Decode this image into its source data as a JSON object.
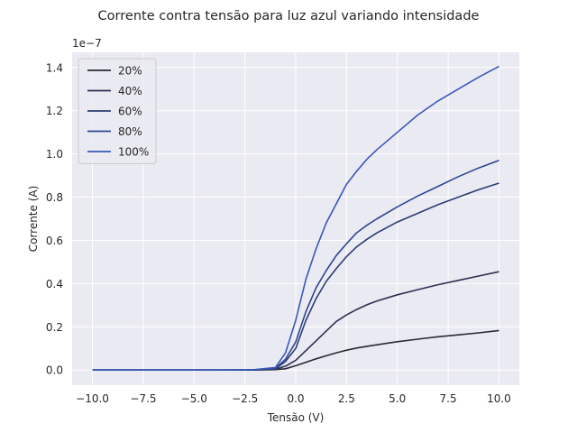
{
  "chart_data": {
    "type": "line",
    "title": "Corrente contra tensão para luz azul variando intensidade",
    "xlabel": "Tensão (V)",
    "ylabel": "Corrente (A)",
    "y_multiplier_label": "1e−7",
    "xlim": [
      -11,
      11
    ],
    "ylim": [
      -0.07,
      1.47
    ],
    "x_ticks": [
      -10.0,
      -7.5,
      -5.0,
      -2.5,
      0.0,
      2.5,
      5.0,
      7.5,
      10.0
    ],
    "x_tick_labels": [
      "−10.0",
      "−7.5",
      "−5.0",
      "−2.5",
      "0.0",
      "2.5",
      "5.0",
      "7.5",
      "10.0"
    ],
    "y_ticks": [
      0.0,
      0.2,
      0.4,
      0.6,
      0.8,
      1.0,
      1.2,
      1.4
    ],
    "y_tick_labels": [
      "0.0",
      "0.2",
      "0.4",
      "0.6",
      "0.8",
      "1.0",
      "1.2",
      "1.4"
    ],
    "grid": true,
    "legend_position": "top-left",
    "background_color": "#eaeaf2",
    "x": [
      -10,
      -8,
      -6,
      -4,
      -2,
      -1,
      -0.5,
      0,
      0.5,
      1,
      1.5,
      2,
      2.5,
      3,
      3.5,
      4,
      5,
      6,
      7,
      8,
      9,
      10
    ],
    "series": [
      {
        "name": "20%",
        "color": "#2a2a33",
        "values": [
          0,
          0,
          0,
          0,
          0,
          0.002,
          0.006,
          0.02,
          0.036,
          0.052,
          0.066,
          0.08,
          0.092,
          0.102,
          0.11,
          0.117,
          0.131,
          0.143,
          0.154,
          0.163,
          0.172,
          0.183
        ]
      },
      {
        "name": "40%",
        "color": "#2b3050",
        "values": [
          0,
          0,
          0,
          0,
          0.001,
          0.004,
          0.018,
          0.045,
          0.09,
          0.135,
          0.18,
          0.225,
          0.255,
          0.28,
          0.302,
          0.32,
          0.348,
          0.372,
          0.395,
          0.415,
          0.435,
          0.455
        ]
      },
      {
        "name": "60%",
        "color": "#2c3c72",
        "values": [
          0,
          0,
          0,
          0,
          0.001,
          0.006,
          0.04,
          0.1,
          0.23,
          0.33,
          0.41,
          0.47,
          0.525,
          0.57,
          0.605,
          0.635,
          0.685,
          0.725,
          0.765,
          0.8,
          0.835,
          0.865
        ]
      },
      {
        "name": "80%",
        "color": "#2f4590",
        "values": [
          0,
          0,
          0,
          0,
          0.001,
          0.008,
          0.05,
          0.13,
          0.27,
          0.38,
          0.46,
          0.53,
          0.585,
          0.635,
          0.67,
          0.7,
          0.755,
          0.805,
          0.85,
          0.895,
          0.935,
          0.97
        ]
      },
      {
        "name": "100%",
        "color": "#3a57b8",
        "values": [
          0,
          0,
          0,
          0,
          0.002,
          0.012,
          0.08,
          0.23,
          0.42,
          0.56,
          0.68,
          0.77,
          0.86,
          0.92,
          0.975,
          1.02,
          1.1,
          1.18,
          1.245,
          1.3,
          1.355,
          1.405
        ]
      }
    ]
  }
}
